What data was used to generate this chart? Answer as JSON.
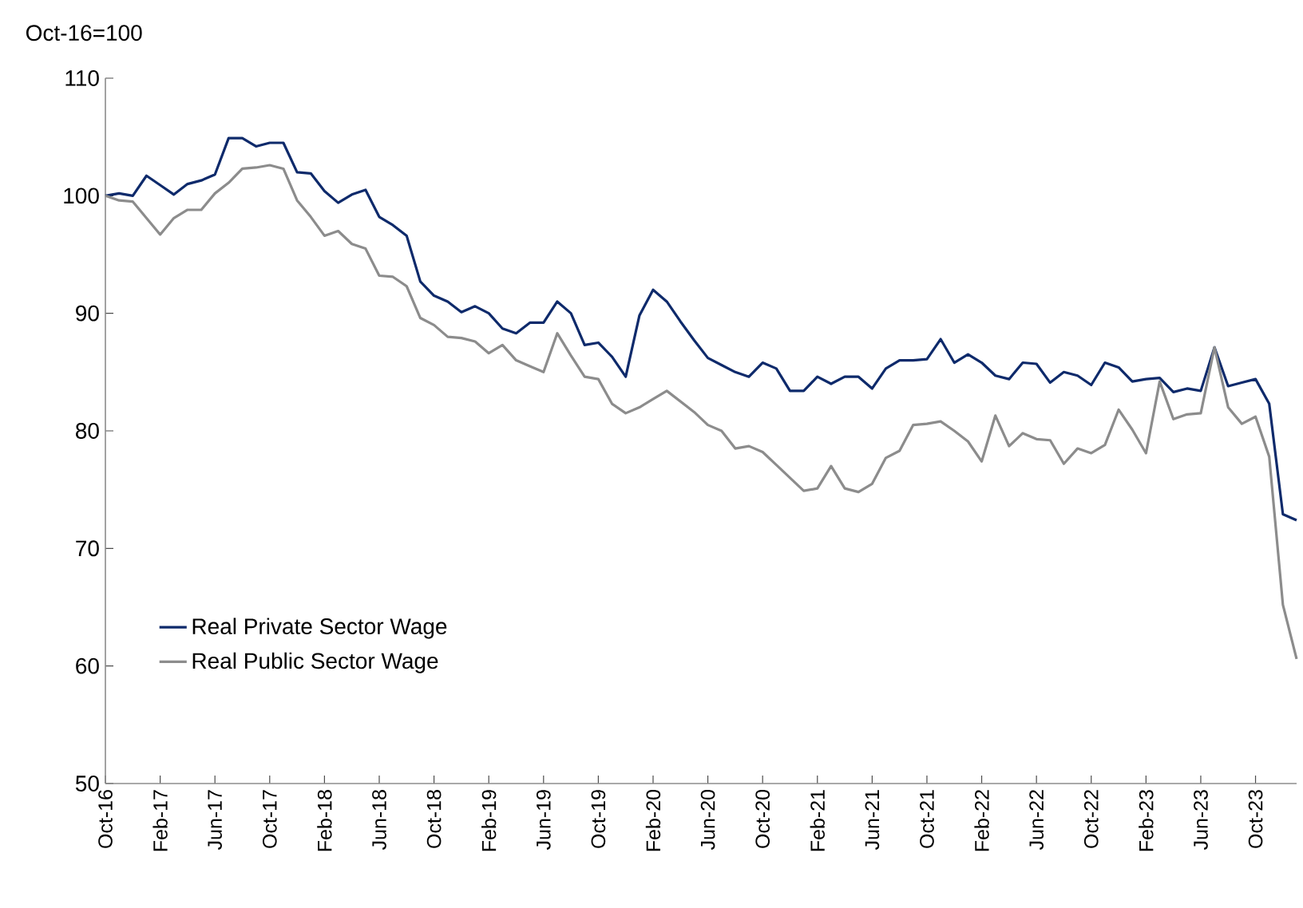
{
  "chart_data": {
    "type": "line",
    "ylabel": "Oct-16=100",
    "x": [
      "2016-10",
      "2016-11",
      "2016-12",
      "2017-01",
      "2017-02",
      "2017-03",
      "2017-04",
      "2017-05",
      "2017-06",
      "2017-07",
      "2017-08",
      "2017-09",
      "2017-10",
      "2017-11",
      "2017-12",
      "2018-01",
      "2018-02",
      "2018-03",
      "2018-04",
      "2018-05",
      "2018-06",
      "2018-07",
      "2018-08",
      "2018-09",
      "2018-10",
      "2018-11",
      "2018-12",
      "2019-01",
      "2019-02",
      "2019-03",
      "2019-04",
      "2019-05",
      "2019-06",
      "2019-07",
      "2019-08",
      "2019-09",
      "2019-10",
      "2019-11",
      "2019-12",
      "2020-01",
      "2020-02",
      "2020-03",
      "2020-04",
      "2020-05",
      "2020-06",
      "2020-07",
      "2020-08",
      "2020-09",
      "2020-10",
      "2020-11",
      "2020-12",
      "2021-01",
      "2021-02",
      "2021-03",
      "2021-04",
      "2021-05",
      "2021-06",
      "2021-07",
      "2021-08",
      "2021-09",
      "2021-10",
      "2021-11",
      "2021-12",
      "2022-01",
      "2022-02",
      "2022-03",
      "2022-04",
      "2022-05",
      "2022-06",
      "2022-07",
      "2022-08",
      "2022-09",
      "2022-10",
      "2022-11",
      "2022-12",
      "2023-01",
      "2023-02",
      "2023-03",
      "2023-04",
      "2023-05",
      "2023-06",
      "2023-07",
      "2023-08",
      "2023-09",
      "2023-10",
      "2023-11",
      "2023-12",
      "2024-01"
    ],
    "series": [
      {
        "name": "Real Private Sector Wage",
        "color": "#0e2a6b",
        "values": [
          100,
          100.2,
          100,
          101.7,
          100.9,
          100.1,
          101,
          101.3,
          101.8,
          104.9,
          104.9,
          104.2,
          104.5,
          104.5,
          102,
          101.9,
          100.4,
          99.4,
          100.1,
          100.5,
          98.2,
          97.5,
          96.6,
          92.7,
          91.5,
          91,
          90.1,
          90.6,
          90,
          88.7,
          88.3,
          89.2,
          89.2,
          91,
          90,
          87.3,
          87.5,
          86.3,
          84.6,
          89.8,
          92,
          91,
          89.3,
          87.7,
          86.2,
          85.6,
          85,
          84.6,
          85.8,
          85.3,
          83.4,
          83.4,
          84.6,
          84,
          84.6,
          84.6,
          83.6,
          85.3,
          86,
          86,
          86.1,
          87.8,
          85.8,
          86.5,
          85.8,
          84.7,
          84.4,
          85.8,
          85.7,
          84.1,
          85,
          84.7,
          83.9,
          85.8,
          85.4,
          84.2,
          84.4,
          84.5,
          83.3,
          83.6,
          83.4,
          87.1,
          83.8,
          84.1,
          84.4,
          82.3,
          72.9,
          72.4
        ]
      },
      {
        "name": "Real Public Sector Wage",
        "color": "#8c8c8c",
        "values": [
          100,
          99.6,
          99.5,
          98.1,
          96.7,
          98.1,
          98.8,
          98.8,
          100.2,
          101.1,
          102.3,
          102.4,
          102.6,
          102.3,
          99.6,
          98.2,
          96.6,
          97,
          95.9,
          95.5,
          93.2,
          93.1,
          92.3,
          89.6,
          89,
          88,
          87.9,
          87.6,
          86.6,
          87.3,
          86,
          85.5,
          85,
          88.3,
          86.4,
          84.6,
          84.4,
          82.3,
          81.5,
          82,
          82.7,
          83.4,
          82.5,
          81.6,
          80.5,
          80,
          78.5,
          78.7,
          78.2,
          77.1,
          76,
          74.9,
          75.1,
          77,
          75.1,
          74.8,
          75.5,
          77.7,
          78.3,
          80.5,
          80.6,
          80.8,
          80,
          79.1,
          77.4,
          81.3,
          78.7,
          79.8,
          79.3,
          79.2,
          77.2,
          78.5,
          78.1,
          78.8,
          81.8,
          80.1,
          78.1,
          84.2,
          81,
          81.4,
          81.5,
          87.1,
          82,
          80.6,
          81.2,
          77.8,
          65.2,
          60.6
        ]
      }
    ],
    "xlim": [
      "2016-10",
      "2024-01"
    ],
    "xticks": [
      {
        "value": "2016-10",
        "label": "Oct-16"
      },
      {
        "value": "2017-02",
        "label": "Feb-17"
      },
      {
        "value": "2017-06",
        "label": "Jun-17"
      },
      {
        "value": "2017-10",
        "label": "Oct-17"
      },
      {
        "value": "2018-02",
        "label": "Feb-18"
      },
      {
        "value": "2018-06",
        "label": "Jun-18"
      },
      {
        "value": "2018-10",
        "label": "Oct-18"
      },
      {
        "value": "2019-02",
        "label": "Feb-19"
      },
      {
        "value": "2019-06",
        "label": "Jun-19"
      },
      {
        "value": "2019-10",
        "label": "Oct-19"
      },
      {
        "value": "2020-02",
        "label": "Feb-20"
      },
      {
        "value": "2020-06",
        "label": "Jun-20"
      },
      {
        "value": "2020-10",
        "label": "Oct-20"
      },
      {
        "value": "2021-02",
        "label": "Feb-21"
      },
      {
        "value": "2021-06",
        "label": "Jun-21"
      },
      {
        "value": "2021-10",
        "label": "Oct-21"
      },
      {
        "value": "2022-02",
        "label": "Feb-22"
      },
      {
        "value": "2022-06",
        "label": "Jun-22"
      },
      {
        "value": "2022-10",
        "label": "Oct-22"
      },
      {
        "value": "2023-02",
        "label": "Feb-23"
      },
      {
        "value": "2023-06",
        "label": "Jun-23"
      },
      {
        "value": "2023-10",
        "label": "Oct-23"
      }
    ],
    "ylim": [
      50,
      110
    ],
    "yticks": [
      50,
      60,
      70,
      80,
      90,
      100,
      110
    ],
    "grid": false,
    "legend": "bottom left",
    "marker": "none",
    "line_style": "solid"
  }
}
